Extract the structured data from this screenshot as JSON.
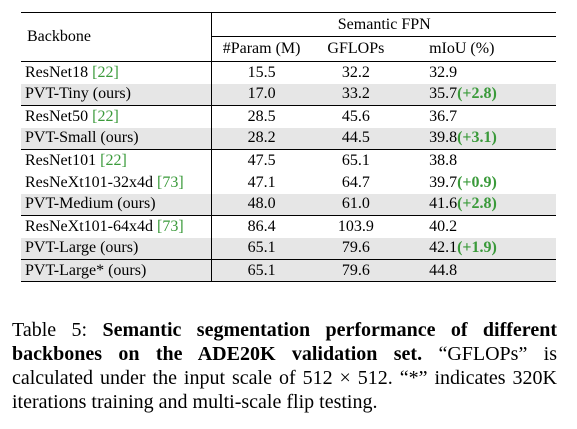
{
  "table": {
    "header": {
      "backbone": "Backbone",
      "group": "Semantic FPN",
      "columns": [
        "#Param (M)",
        "GFLOPs",
        "mIoU (%)"
      ]
    },
    "rows": [
      {
        "name": "ResNet18",
        "ref": "[22]",
        "suffix": "",
        "param": "15.5",
        "gflops": "32.2",
        "miou": "32.9",
        "gain": "",
        "shaded": false
      },
      {
        "name": "PVT-Tiny (ours)",
        "ref": "",
        "suffix": "",
        "param": "17.0",
        "gflops": "33.2",
        "miou": "35.7",
        "gain": "(+2.8)",
        "shaded": true
      },
      {
        "name": "ResNet50",
        "ref": "[22]",
        "suffix": "",
        "param": "28.5",
        "gflops": "45.6",
        "miou": "36.7",
        "gain": "",
        "shaded": false
      },
      {
        "name": "PVT-Small (ours)",
        "ref": "",
        "suffix": "",
        "param": "28.2",
        "gflops": "44.5",
        "miou": "39.8",
        "gain": "(+3.1)",
        "shaded": true
      },
      {
        "name": "ResNet101",
        "ref": "[22]",
        "suffix": "",
        "param": "47.5",
        "gflops": "65.1",
        "miou": "38.8",
        "gain": "",
        "shaded": false
      },
      {
        "name": "ResNeXt101-32x4d",
        "ref": "[73]",
        "suffix": "",
        "param": "47.1",
        "gflops": "64.7",
        "miou": "39.7",
        "gain": "(+0.9)",
        "shaded": false
      },
      {
        "name": "PVT-Medium (ours)",
        "ref": "",
        "suffix": "",
        "param": "48.0",
        "gflops": "61.0",
        "miou": "41.6",
        "gain": "(+2.8)",
        "shaded": true
      },
      {
        "name": "ResNeXt101-64x4d",
        "ref": "[73]",
        "suffix": "",
        "param": "86.4",
        "gflops": "103.9",
        "miou": "40.2",
        "gain": "",
        "shaded": false
      },
      {
        "name": "PVT-Large (ours)",
        "ref": "",
        "suffix": "",
        "param": "65.1",
        "gflops": "79.6",
        "miou": "42.1",
        "gain": "(+1.9)",
        "shaded": true
      },
      {
        "name": "PVT-Large* (ours)",
        "ref": "",
        "suffix": "",
        "param": "65.1",
        "gflops": "79.6",
        "miou": "44.8",
        "gain": "",
        "shaded": true
      }
    ]
  },
  "caption": {
    "label": "Table 5:",
    "bold": "Semantic segmentation performance of different backbones on the ADE20K validation set.",
    "text": "“GFLOPs” is calculated under the input scale of 512 × 512. “*” indicates 320K iterations training and multi-scale flip testing."
  },
  "colors": {
    "reference": "#3a9a3a",
    "gain": "#3a9a3a",
    "shade": "#e6e6e6"
  }
}
